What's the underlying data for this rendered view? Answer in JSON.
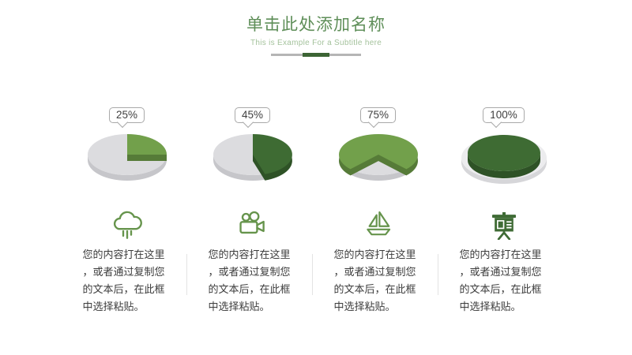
{
  "slide": {
    "title": "单击此处添加名称",
    "subtitle": "This is Example For a Subtitle here"
  },
  "columns": [
    {
      "icon": "cloud-rain-icon",
      "body": "您的内容打在这里，或者通过复制您的文本后，在此框中选择粘贴。"
    },
    {
      "icon": "video-camera-icon",
      "body": "您的内容打在这里，或者通过复制您的文本后，在此框中选择粘贴。"
    },
    {
      "icon": "sailboat-icon",
      "body": "您的内容打在这里，或者通过复制您的文本后，在此框中选择粘贴。"
    },
    {
      "icon": "presentation-board-icon",
      "body": "您的内容打在这里，或者通过复制您的文本后，在此框中选择粘贴。"
    }
  ],
  "colors": {
    "title_green": "#5e8e58",
    "subtitle_green": "#a4c29c",
    "divider_gray": "#b5b5b5",
    "divider_green": "#3c6434",
    "outline_icon_green": "#66944c",
    "filled_icon_green": "#3f6b35",
    "body_text": "#3c3c3c",
    "callout_border": "#a9a9a9"
  },
  "chart_data": {
    "type": "pie",
    "unit": "percent",
    "style": "3d-pie",
    "pies": [
      {
        "label": "25%",
        "value": 25,
        "start_angle_deg": 0,
        "filled_color": "#72a04b",
        "filled_side_color": "#567b38",
        "rest_color": "#dcdcdf",
        "rest_side_color": "#c6c6ca"
      },
      {
        "label": "45%",
        "value": 45,
        "start_angle_deg": 0,
        "filled_color": "#3e6b33",
        "filled_side_color": "#2e5226",
        "rest_color": "#dcdcdf",
        "rest_side_color": "#c6c6ca"
      },
      {
        "label": "75%",
        "value": 75,
        "start_angle_deg": 225,
        "filled_color": "#72a04b",
        "filled_side_color": "#567b38",
        "rest_color": "#dcdcdf",
        "rest_side_color": "#c6c6ca"
      },
      {
        "label": "100%",
        "value": 100,
        "start_angle_deg": 0,
        "filled_color": "#3e6b33",
        "filled_side_color": "#2e5226",
        "rest_color": "#ececee",
        "rest_side_color": "#d6d6d9"
      }
    ]
  }
}
